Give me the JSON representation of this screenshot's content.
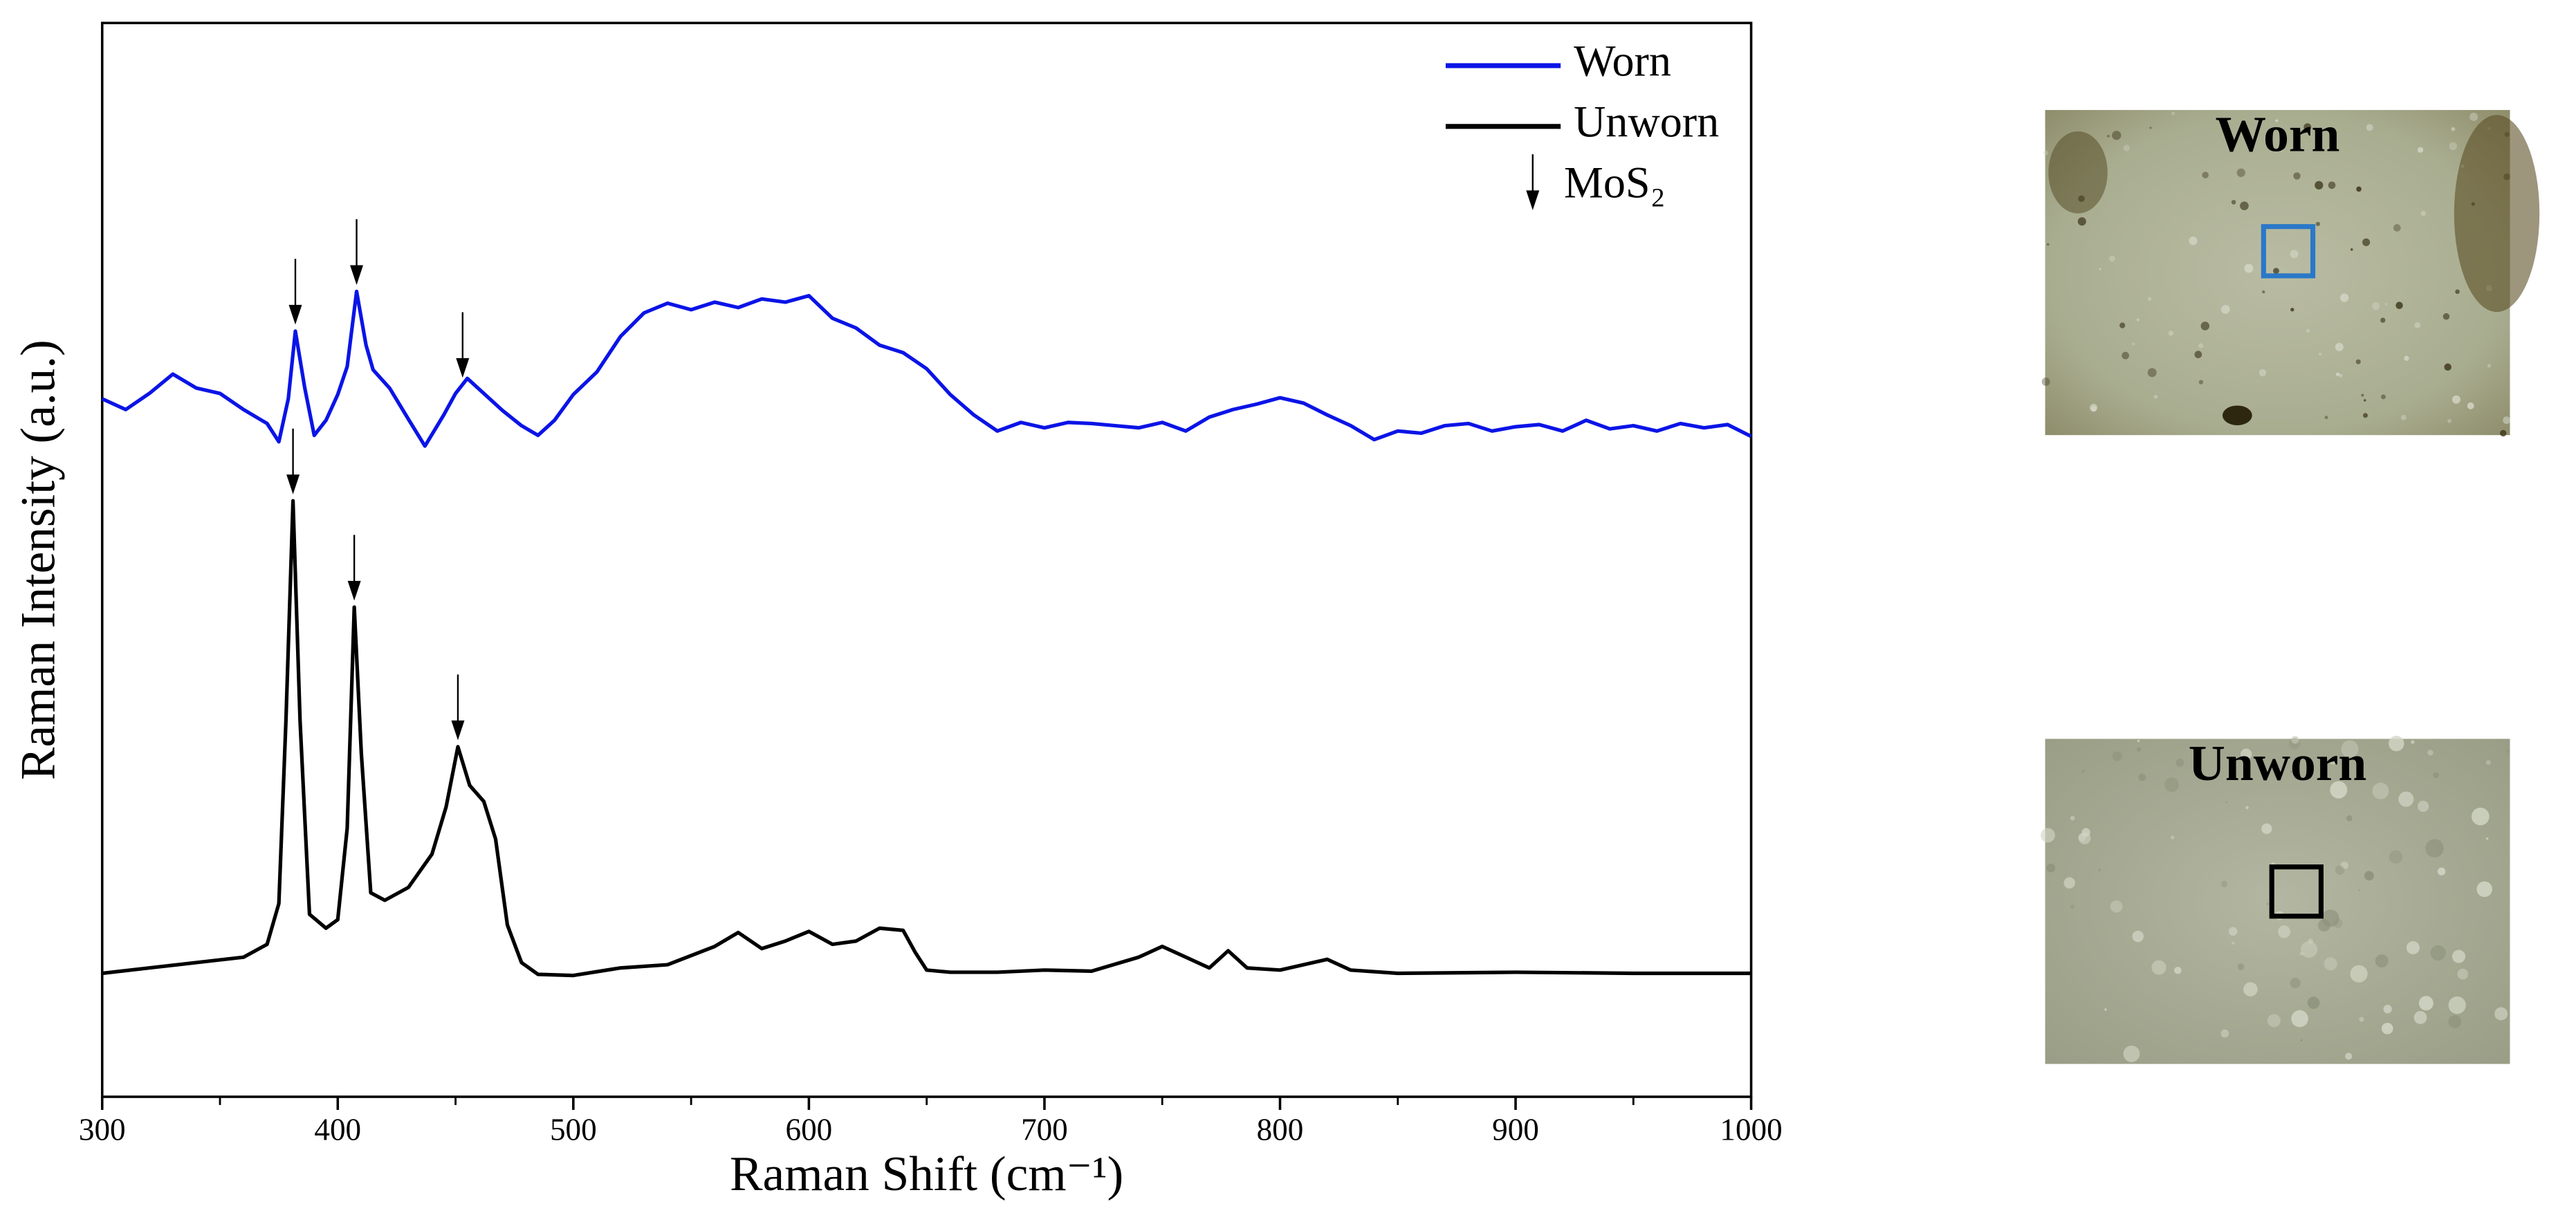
{
  "chart_data": {
    "type": "line",
    "xlabel": "Raman Shift (cm⁻¹)",
    "ylabel": "Raman Intensity (a.u.)",
    "xlim": [
      300,
      1000
    ],
    "xticks": [
      300,
      400,
      500,
      600,
      700,
      800,
      900,
      1000
    ],
    "xminor_ticks": [
      350,
      450,
      550,
      650,
      750,
      850,
      950
    ],
    "ylim": [
      0,
      100
    ],
    "legend": "upper right",
    "arrow_label": "MoS₂",
    "series": [
      {
        "name": "Worn",
        "color": "#0a14e6",
        "arrows": [
          382,
          408,
          453
        ],
        "x": [
          300,
          310,
          320,
          330,
          340,
          350,
          360,
          370,
          375,
          379,
          382,
          386,
          390,
          395,
          400,
          404,
          408,
          412,
          415,
          422,
          430,
          437,
          445,
          450,
          455,
          462,
          470,
          478,
          485,
          492,
          500,
          510,
          520,
          530,
          540,
          550,
          560,
          570,
          580,
          590,
          600,
          610,
          620,
          630,
          640,
          650,
          660,
          670,
          680,
          690,
          700,
          710,
          720,
          730,
          740,
          750,
          760,
          770,
          780,
          790,
          800,
          810,
          820,
          830,
          840,
          850,
          860,
          870,
          880,
          890,
          900,
          910,
          920,
          930,
          940,
          950,
          960,
          970,
          980,
          990,
          1000
        ],
        "values": [
          65.0,
          64,
          65.5,
          67.3,
          66,
          65.5,
          64,
          62.7,
          61,
          65,
          71.3,
          66,
          61.6,
          63,
          65.4,
          68,
          75,
          70,
          67.7,
          66,
          63.1,
          60.6,
          63.5,
          65.5,
          66.9,
          65.5,
          63.9,
          62.5,
          61.6,
          63,
          65.4,
          67.5,
          70.8,
          73,
          73.9,
          73.3,
          74,
          73.5,
          74.3,
          74,
          74.6,
          72.5,
          71.6,
          70,
          69.3,
          67.8,
          65.4,
          63.5,
          62,
          62.8,
          62.3,
          62.8,
          62.7,
          62.5,
          62.3,
          62.8,
          62,
          63.3,
          64,
          64.5,
          65.1,
          64.6,
          63.5,
          62.5,
          61.2,
          62,
          61.8,
          62.5,
          62.7,
          62,
          62.4,
          62.6,
          62,
          63,
          62.2,
          62.5,
          62,
          62.7,
          62.3,
          62.6,
          61.5
        ]
      },
      {
        "name": "Unworn",
        "color": "#000000",
        "arrows": [
          381,
          407,
          451
        ],
        "x": [
          300,
          320,
          340,
          360,
          370,
          375,
          378,
          381,
          384,
          388,
          395,
          400,
          404,
          407,
          410,
          414,
          420,
          430,
          440,
          446,
          451,
          456,
          462,
          467,
          472,
          478,
          485,
          500,
          520,
          540,
          560,
          570,
          580,
          590,
          600,
          610,
          620,
          630,
          640,
          645,
          650,
          660,
          680,
          700,
          720,
          740,
          750,
          760,
          770,
          778,
          786,
          800,
          820,
          830,
          850,
          900,
          950,
          1000
        ],
        "values": [
          11.5,
          12.0,
          12.5,
          13.0,
          14.2,
          18,
          35,
          55.5,
          35,
          17,
          15.7,
          16.5,
          25,
          45.6,
          32,
          19,
          18.3,
          19.5,
          22.6,
          27,
          32.6,
          29,
          27.5,
          24,
          16,
          12.5,
          11.4,
          11.3,
          12,
          12.3,
          14,
          15.3,
          13.8,
          14.5,
          15.4,
          14.2,
          14.5,
          15.7,
          15.5,
          13.5,
          11.8,
          11.6,
          11.6,
          11.8,
          11.7,
          13,
          14,
          13,
          12,
          13.6,
          12,
          11.8,
          12.8,
          11.8,
          11.5,
          11.6,
          11.5,
          11.5
        ]
      }
    ],
    "insets": [
      {
        "label": "Worn",
        "box_color": "#2a78c8"
      },
      {
        "label": "Unworn",
        "box_color": "#000000"
      }
    ]
  }
}
